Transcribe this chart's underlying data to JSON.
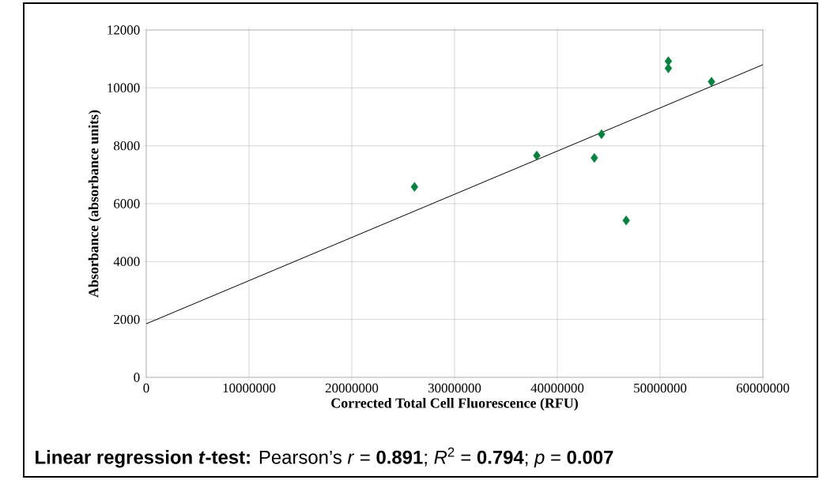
{
  "chart_data": {
    "type": "scatter",
    "xlabel": "Corrected Total Cell Fluorescence (RFU)",
    "ylabel": "Absorbance (absorbance units)",
    "annotations": [
      "**Linear regression *t*-test:** Pearson’s *r* = **0.891**; *R*$^{2}$ = **0.794**; *p* = **0.007**"
    ],
    "xlim": [
      0,
      60000000
    ],
    "xticks": [
      0,
      10000000,
      20000000,
      30000000,
      40000000,
      50000000,
      60000000
    ],
    "ylim": [
      0,
      12000
    ],
    "yticks": [
      0,
      2000,
      4000,
      6000,
      8000,
      10000,
      12000
    ],
    "grid": true,
    "marker": "diamond",
    "series": [
      {
        "color": "#0a8040",
        "x": [
          26100000,
          38000000,
          43600000,
          44300000,
          46700000,
          50800000,
          50800000,
          55000000
        ],
        "values": [
          6580,
          7660,
          7580,
          8400,
          5420,
          10920,
          10680,
          10210
        ]
      },
      {
        "type": "line",
        "color": "#000000",
        "marker": "none",
        "x": [
          0,
          60000000
        ],
        "values": [
          1850,
          10800
        ]
      }
    ]
  }
}
